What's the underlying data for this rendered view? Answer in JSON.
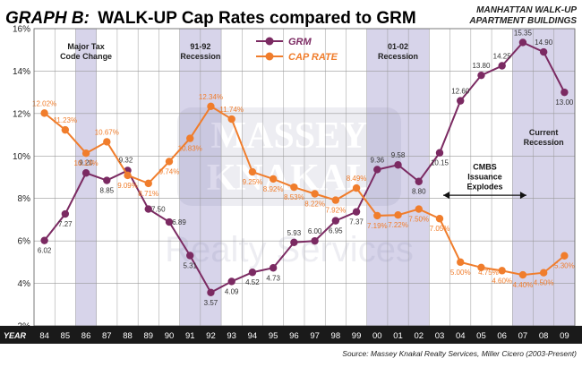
{
  "header": {
    "title_prefix": "GRAPH B:",
    "title_main": "WALK-UP Cap Rates compared to GRM",
    "subtitle_line1": "MANHATTAN WALK-UP",
    "subtitle_line2": "APARTMENT BUILDINGS"
  },
  "watermark": {
    "line1": "MASSEY",
    "line2": "KNAKAL",
    "line3": "Realty Services"
  },
  "source": "Source: Massey Knakal Realty Services, Miller Cicero (2003-Present)",
  "x_axis_caption": "YEAR",
  "colors": {
    "grm": "#7b2a62",
    "cap_rate": "#f07d2c",
    "recession_band": "#c9c5e3",
    "grid": "#999999",
    "axis_bar": "#1a1a1a"
  },
  "chart_data": {
    "type": "line",
    "title": "WALK-UP Cap Rates compared to GRM",
    "x": [
      "84",
      "85",
      "86",
      "87",
      "88",
      "89",
      "90",
      "91",
      "92",
      "93",
      "94",
      "95",
      "96",
      "97",
      "98",
      "99",
      "00",
      "01",
      "02",
      "03",
      "04",
      "05",
      "06",
      "07",
      "08",
      "09"
    ],
    "series": [
      {
        "name": "GRM",
        "axis": "left",
        "values": [
          6.02,
          7.27,
          9.2,
          8.85,
          9.32,
          7.5,
          6.89,
          5.31,
          3.57,
          4.09,
          4.52,
          4.73,
          5.93,
          6.0,
          6.95,
          7.37,
          9.36,
          9.58,
          8.8,
          10.15,
          12.6,
          13.8,
          14.25,
          15.35,
          14.9,
          13.0
        ],
        "labels": [
          "6.02",
          "7.27",
          "9.20",
          "8.85",
          "9.32",
          "7.50",
          "6.89",
          "5.31",
          "3.57",
          "4.09",
          "4.52",
          "4.73",
          "5.93",
          "6.00",
          "6.95",
          "7.37",
          "9.36",
          "9.58",
          "8.80",
          "10.15",
          "12.60",
          "13.80",
          "14.25",
          "15.35",
          "14.90",
          "13.00"
        ]
      },
      {
        "name": "CAP RATE",
        "axis": "left",
        "values": [
          12.02,
          11.23,
          10.13,
          10.67,
          9.09,
          8.71,
          9.74,
          10.83,
          12.34,
          11.74,
          9.25,
          8.92,
          8.53,
          8.22,
          7.92,
          8.49,
          7.19,
          7.22,
          7.5,
          7.05,
          5.0,
          4.75,
          4.6,
          4.4,
          4.5,
          5.3
        ],
        "labels": [
          "12.02%",
          "11.23%",
          "10.13%",
          "10.67%",
          "9.09%",
          "8.71%",
          "9.74%",
          "10.83%",
          "12.34%",
          "11.74%",
          "9.25%",
          "8.92%",
          "8.53%",
          "8.22%",
          "7.92%",
          "8.49%",
          "7.19%",
          "7.22%",
          "7.50%",
          "7.05%",
          "5.00%",
          "4.75%",
          "4.60%",
          "4.40%",
          "4.50%",
          "5.30%"
        ]
      }
    ],
    "y_axis": {
      "min": 2,
      "max": 16,
      "ticks": [
        "2%",
        "4%",
        "6%",
        "8%",
        "10%",
        "12%",
        "14%",
        "16%"
      ]
    },
    "grid": true,
    "legend": "top-center",
    "shaded_periods": [
      {
        "from": "86",
        "to": "86",
        "label_lines": [
          "Major Tax",
          "Code Change"
        ]
      },
      {
        "from": "91",
        "to": "92",
        "label_lines": [
          "91-92",
          "Recession"
        ]
      },
      {
        "from": "00",
        "to": "02",
        "label_lines": [
          "01-02",
          "Recession"
        ]
      },
      {
        "from": "07",
        "to": "09",
        "label_lines": [
          "Current",
          "Recession"
        ]
      }
    ],
    "annotations": [
      {
        "text_lines": [
          "CMBS",
          "Issuance",
          "Explodes"
        ],
        "arrow_from": "03",
        "arrow_to": "07"
      }
    ]
  }
}
